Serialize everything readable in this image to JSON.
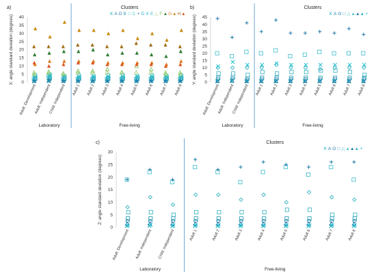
{
  "chart_data": [
    {
      "type": "scatter",
      "panel_label": "a)",
      "legend_title": "Clusters",
      "ylabel": "X: angle standard deviation (degrees)",
      "ylim": [
        0,
        40
      ],
      "yticks": [
        0,
        5,
        10,
        15,
        20,
        25,
        30,
        35,
        40
      ],
      "categories": [
        "Adult: Development",
        "Adult: Independent",
        "Child: Independent",
        "Adult 1",
        "Adult 2",
        "Adult 3",
        "Adult 4",
        "Adult 5",
        "Adult 6",
        "Adult 7",
        "Adult 8"
      ],
      "groups": [
        {
          "label": "Laboratory",
          "count": 3
        },
        {
          "label": "Free-living",
          "count": 8
        }
      ],
      "legend_position": "top-right",
      "series": [
        {
          "name": "X",
          "values": [
            0.5,
            0.6,
            0.5,
            0.5,
            0.4,
            0.5,
            0.5,
            0.4,
            0.5,
            0.4,
            0.5
          ]
        },
        {
          "name": "A",
          "values": [
            1.0,
            1.2,
            1.0,
            1.0,
            1.0,
            1.0,
            1.0,
            1.0,
            1.0,
            1.0,
            1.0
          ]
        },
        {
          "name": "O",
          "values": [
            1.5,
            1.8,
            1.4,
            1.5,
            1.4,
            1.5,
            1.5,
            1.4,
            1.5,
            1.4,
            1.5
          ]
        },
        {
          "name": "B",
          "values": [
            2.0,
            2.2,
            1.8,
            2.0,
            1.8,
            2.0,
            2.0,
            1.9,
            2.0,
            1.9,
            2.0
          ]
        },
        {
          "name": "□",
          "values": [
            2.5,
            3.0,
            2.5,
            2.5,
            2.4,
            2.5,
            2.5,
            2.4,
            2.5,
            2.4,
            2.5
          ]
        },
        {
          "name": "C",
          "values": [
            2.0,
            3.5,
            2.0,
            2.0,
            2.0,
            2.0,
            2.0,
            2.0,
            2.0,
            2.0,
            2.0
          ]
        },
        {
          "name": "+",
          "values": [
            1.0,
            1.5,
            1.0,
            1.0,
            1.0,
            1.0,
            1.0,
            1.0,
            1.0,
            1.0,
            1.0
          ]
        },
        {
          "name": "D",
          "values": [
            3.0,
            3.5,
            3.0,
            3.0,
            3.0,
            3.0,
            3.0,
            3.0,
            3.0,
            3.0,
            3.0
          ]
        },
        {
          "name": "X",
          "values": [
            3.5,
            4.0,
            3.5,
            3.5,
            3.5,
            3.5,
            3.5,
            3.5,
            3.5,
            3.5,
            3.5
          ]
        },
        {
          "name": "E",
          "values": [
            4.5,
            5.0,
            4.0,
            4.5,
            4.0,
            4.5,
            4.5,
            4.0,
            4.5,
            4.0,
            4.5
          ]
        },
        {
          "name": "△",
          "values": [
            6.0,
            6.5,
            5.5,
            6.0,
            6.0,
            6.0,
            6.0,
            6.0,
            6.0,
            6.0,
            6.0
          ]
        },
        {
          "name": "F",
          "values": [
            5.0,
            6.0,
            5.0,
            7.0,
            7.0,
            8.0,
            6.0,
            10.0,
            8.0,
            5.0,
            5.0
          ]
        },
        {
          "name": "▲",
          "values": [
            17.0,
            18.0,
            19.0,
            19.0,
            20.0,
            17.0,
            18.0,
            18.0,
            17.0,
            16.0,
            19.0
          ]
        },
        {
          "name": "G",
          "values": [
            11.0,
            13.0,
            13.0,
            13.0,
            13.0,
            12.0,
            12.0,
            12.0,
            12.0,
            11.0,
            13.0
          ]
        },
        {
          "name": "▲",
          "values": [
            33.0,
            28.0,
            37.0,
            32.0,
            32.0,
            30.0,
            32.0,
            27.0,
            30.0,
            26.0,
            32.0
          ]
        },
        {
          "name": "H",
          "values": [
            22.0,
            22.0,
            22.0,
            23.0,
            23.0,
            22.0,
            22.0,
            24.0,
            23.0,
            23.0,
            22.0
          ]
        },
        {
          "name": "▲",
          "values": [
            12.0,
            10.0,
            11.0,
            12.0,
            12.0,
            11.0,
            11.0,
            11.0,
            11.0,
            10.0,
            11.0
          ]
        }
      ]
    },
    {
      "type": "scatter",
      "panel_label": "b)",
      "legend_title": "Clusters",
      "ylabel": "Y: angle standard deviation (degrees)",
      "ylim": [
        0,
        45
      ],
      "yticks": [
        0,
        5,
        10,
        15,
        20,
        25,
        30,
        35,
        40,
        45
      ],
      "categories": [
        "Adult: Development",
        "Adult: Independent",
        "Child: Independent",
        "Adult 1",
        "Adult 2",
        "Adult 3",
        "Adult 4",
        "Adult 5",
        "Adult 6",
        "Adult 7",
        "Adult 8"
      ],
      "groups": [
        {
          "label": "Laboratory",
          "count": 3
        },
        {
          "label": "Free-living",
          "count": 8
        }
      ],
      "legend_position": "top-right",
      "series": [
        {
          "name": "X",
          "values": [
            0.5,
            0.6,
            0.5,
            0.5,
            0.5,
            0.5,
            0.5,
            0.5,
            0.5,
            0.5,
            0.5
          ]
        },
        {
          "name": "A",
          "values": [
            1.0,
            1.2,
            1.0,
            1.0,
            1.0,
            1.0,
            1.0,
            1.0,
            1.0,
            1.0,
            1.0
          ]
        },
        {
          "name": "O",
          "values": [
            2.0,
            2.5,
            1.8,
            2.0,
            2.0,
            2.0,
            2.0,
            2.0,
            2.0,
            2.0,
            2.0
          ]
        },
        {
          "name": "□",
          "values": [
            3.0,
            3.5,
            2.5,
            3.0,
            3.0,
            3.0,
            3.0,
            3.0,
            3.0,
            3.0,
            3.0
          ]
        },
        {
          "name": "△",
          "values": [
            6.0,
            6.0,
            5.0,
            7.0,
            6.0,
            7.0,
            7.0,
            8.0,
            8.0,
            7.0,
            5.0
          ]
        },
        {
          "name": "▲",
          "values": [
            20.0,
            18.0,
            21.0,
            20.0,
            22.0,
            18.0,
            19.0,
            21.0,
            20.0,
            20.0,
            20.0
          ]
        },
        {
          "name": "▲",
          "values": [
            44.0,
            31.0,
            41.0,
            35.0,
            43.0,
            34.0,
            34.0,
            35.0,
            34.0,
            37.0,
            33.0
          ]
        },
        {
          "name": "▲",
          "values": [
            10.0,
            10.0,
            10.0,
            10.0,
            12.0,
            10.0,
            10.0,
            9.0,
            10.0,
            10.0,
            10.0
          ]
        },
        {
          "name": "+",
          "values": [
            11.0,
            14.0,
            12.0,
            12.0,
            13.0,
            12.0,
            12.0,
            12.0,
            12.0,
            12.0,
            12.0
          ]
        }
      ]
    },
    {
      "type": "scatter",
      "panel_label": "c)",
      "legend_title": "Clusters",
      "ylabel": "Z: angle standard deviation (degrees)",
      "ylim": [
        0,
        30
      ],
      "yticks": [
        0,
        5,
        10,
        15,
        20,
        25,
        30
      ],
      "categories": [
        "Adult: Development",
        "Adult: Independent",
        "Child: Independent",
        "Adult 1",
        "Adult 2",
        "Adult 3",
        "Adult 4",
        "Adult 5",
        "Adult 6",
        "Adult 7",
        "Adult 8"
      ],
      "groups": [
        {
          "label": "Laboratory",
          "count": 3
        },
        {
          "label": "Free-living",
          "count": 8
        }
      ],
      "legend_position": "top-right",
      "series": [
        {
          "name": "X",
          "values": [
            0.5,
            0.6,
            0.5,
            0.5,
            0.5,
            0.5,
            0.5,
            0.5,
            0.5,
            0.5,
            0.5
          ]
        },
        {
          "name": "A",
          "values": [
            1.5,
            1.5,
            1.5,
            1.5,
            1.5,
            1.5,
            1.5,
            1.5,
            1.5,
            1.5,
            1.5
          ]
        },
        {
          "name": "O",
          "values": [
            2.5,
            2.5,
            2.5,
            2.5,
            2.5,
            2.5,
            2.5,
            2.5,
            2.5,
            2.5,
            2.5
          ]
        },
        {
          "name": "□",
          "values": [
            3.5,
            3.5,
            3.5,
            3.5,
            3.5,
            3.5,
            3.5,
            3.5,
            3.5,
            3.5,
            3.5
          ]
        },
        {
          "name": "△",
          "values": [
            6.0,
            6.0,
            5.0,
            6.0,
            6.0,
            6.0,
            6.0,
            7.0,
            7.0,
            5.0,
            5.0
          ]
        },
        {
          "name": "▲",
          "values": [
            19.0,
            22.0,
            18.0,
            24.0,
            22.0,
            18.0,
            22.0,
            24.0,
            21.0,
            24.0,
            19.0
          ]
        },
        {
          "name": "▲",
          "values": [
            19.0,
            23.0,
            19.0,
            27.0,
            23.0,
            24.0,
            26.0,
            25.0,
            24.0,
            26.0,
            26.0
          ]
        },
        {
          "name": "▲",
          "values": [
            8.0,
            12.0,
            9.0,
            13.0,
            13.0,
            11.0,
            13.0,
            10.0,
            14.0,
            12.0,
            11.0
          ]
        },
        {
          "name": "+",
          "values": [
            0.8,
            1.0,
            0.8,
            0.8,
            0.8,
            0.8,
            0.8,
            0.8,
            0.8,
            0.8,
            0.8
          ]
        }
      ]
    }
  ]
}
